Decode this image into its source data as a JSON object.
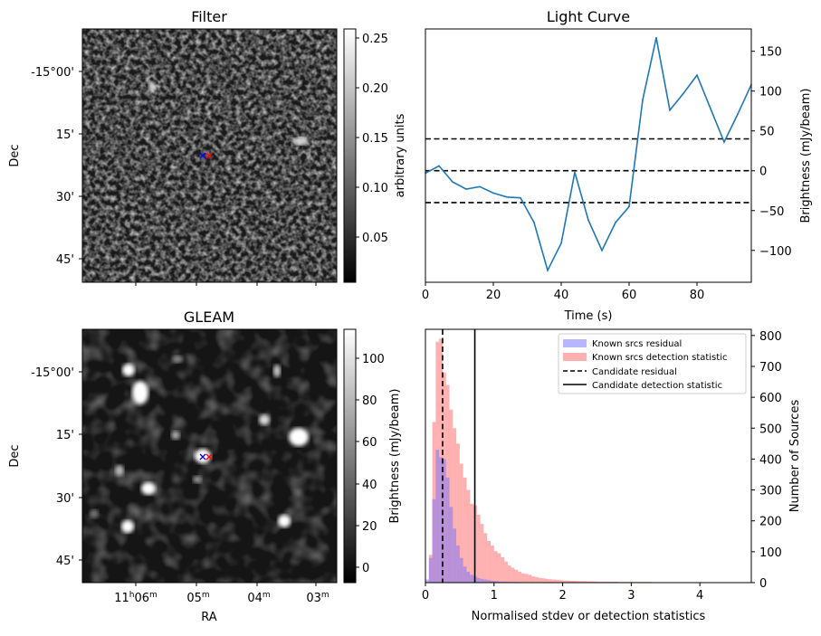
{
  "panels": {
    "filter": {
      "title": "Filter",
      "ylabel": "Dec",
      "y_ticks": [
        "-15°00'",
        "15'",
        "30'",
        "45'"
      ],
      "colorbar": {
        "label": "arbitrary units",
        "ticks": [
          "0.25",
          "0.20",
          "0.15",
          "0.10",
          "0.05"
        ]
      }
    },
    "gleam": {
      "title": "GLEAM",
      "ylabel": "Dec",
      "xlabel": "RA",
      "y_ticks": [
        "-15°00'",
        "15'",
        "30'",
        "45'"
      ],
      "x_ticks": [
        {
          "main": "11",
          "sup1": "h",
          "mid": "06",
          "sup2": "m"
        },
        {
          "main": "05",
          "sup1": "m",
          "mid": "",
          "sup2": ""
        },
        {
          "main": "04",
          "sup1": "m",
          "mid": "",
          "sup2": ""
        },
        {
          "main": "03",
          "sup1": "m",
          "mid": "",
          "sup2": ""
        }
      ],
      "colorbar": {
        "label": "Brightness (mJy/beam)",
        "ticks": [
          "100",
          "80",
          "60",
          "40",
          "20",
          "0"
        ]
      }
    }
  },
  "colors": {
    "line": "#1f77b4",
    "marker_blue": "#0000ff",
    "marker_red": "#ff0000",
    "hist_blue": "#6f6fff",
    "hist_red": "#ff6f6f"
  },
  "chart_data": [
    {
      "type": "line",
      "title": "Light Curve",
      "xlabel": "Time (s)",
      "ylabel": "Brightness (mJy/beam)",
      "xlim": [
        0,
        96
      ],
      "ylim": [
        -140,
        178
      ],
      "x_ticks": [
        0,
        20,
        40,
        60,
        80
      ],
      "y_ticks": [
        -100,
        -50,
        0,
        50,
        100,
        150
      ],
      "y_axis_side": "right",
      "x": [
        0,
        4,
        8,
        12,
        16,
        20,
        24,
        28,
        32,
        36,
        40,
        44,
        48,
        52,
        56,
        60,
        64,
        68,
        72,
        76,
        80,
        84,
        88,
        92,
        96
      ],
      "y": [
        -3,
        6,
        -14,
        -23,
        -20,
        -28,
        -33,
        -34,
        -65,
        -125,
        -91,
        -2,
        -62,
        -100,
        -65,
        -45,
        89,
        167,
        76,
        97,
        120,
        78,
        36,
        71,
        108
      ],
      "hlines": [
        40,
        0,
        -40
      ]
    },
    {
      "type": "histogram",
      "xlabel": "Normalised stdev or detection statistics",
      "ylabel": "Number of Sources",
      "xlim": [
        0,
        4.75
      ],
      "ylim": [
        0,
        820
      ],
      "x_ticks": [
        0,
        1,
        2,
        3,
        4
      ],
      "y_ticks": [
        0,
        100,
        200,
        300,
        400,
        500,
        600,
        700,
        800
      ],
      "y_axis_side": "right",
      "legend_position": "top-right",
      "bin_width": 0.05,
      "series": [
        {
          "name": "Known srcs residual",
          "bin_start": 0,
          "counts": [
            10,
            80,
            270,
            430,
            405,
            400,
            340,
            245,
            175,
            120,
            80,
            52,
            35,
            25,
            20,
            15,
            12,
            10,
            8,
            6,
            5,
            4,
            3,
            3,
            2,
            2,
            2,
            1,
            1,
            1
          ]
        },
        {
          "name": "Known srcs detection statistic",
          "bin_start": 0.05,
          "counts": [
            90,
            520,
            780,
            790,
            680,
            640,
            560,
            500,
            450,
            385,
            340,
            300,
            255,
            250,
            220,
            190,
            160,
            135,
            120,
            102,
            95,
            82,
            68,
            55,
            48,
            42,
            35,
            30,
            28,
            25,
            20,
            18,
            15,
            14,
            12,
            11,
            10,
            9,
            8,
            7,
            7,
            6,
            6,
            5,
            5,
            5,
            4,
            4,
            4,
            3,
            3,
            3,
            3,
            3,
            3,
            2,
            2,
            2,
            2,
            2,
            2,
            2,
            2,
            2,
            2,
            1,
            1,
            1,
            1,
            1,
            1,
            1,
            1,
            1,
            1,
            1,
            1,
            1,
            1,
            1,
            1,
            1,
            1,
            1,
            1,
            1,
            1,
            1,
            1
          ]
        }
      ],
      "vlines": [
        {
          "name": "Candidate residual",
          "x": 0.25,
          "style": "dashed"
        },
        {
          "name": "Candidate detection statistic",
          "x": 0.72,
          "style": "solid"
        }
      ]
    }
  ]
}
